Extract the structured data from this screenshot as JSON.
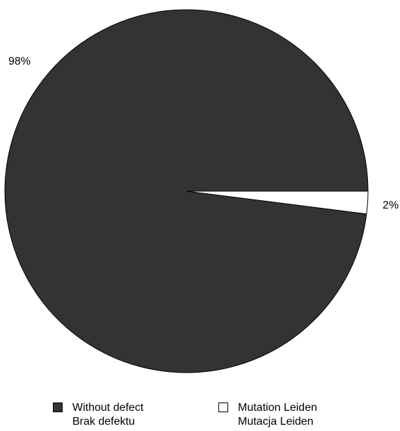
{
  "chart_data": {
    "type": "pie",
    "slices": [
      {
        "label": "Without defect",
        "label_alt": "Brak defektu",
        "value": 98,
        "percent_label": "98%",
        "color": "#333333"
      },
      {
        "label": "Mutation Leiden",
        "label_alt": "Mutacja Leiden",
        "value": 2,
        "percent_label": "2%",
        "color": "#ffffff"
      }
    ],
    "legend_position": "bottom"
  }
}
